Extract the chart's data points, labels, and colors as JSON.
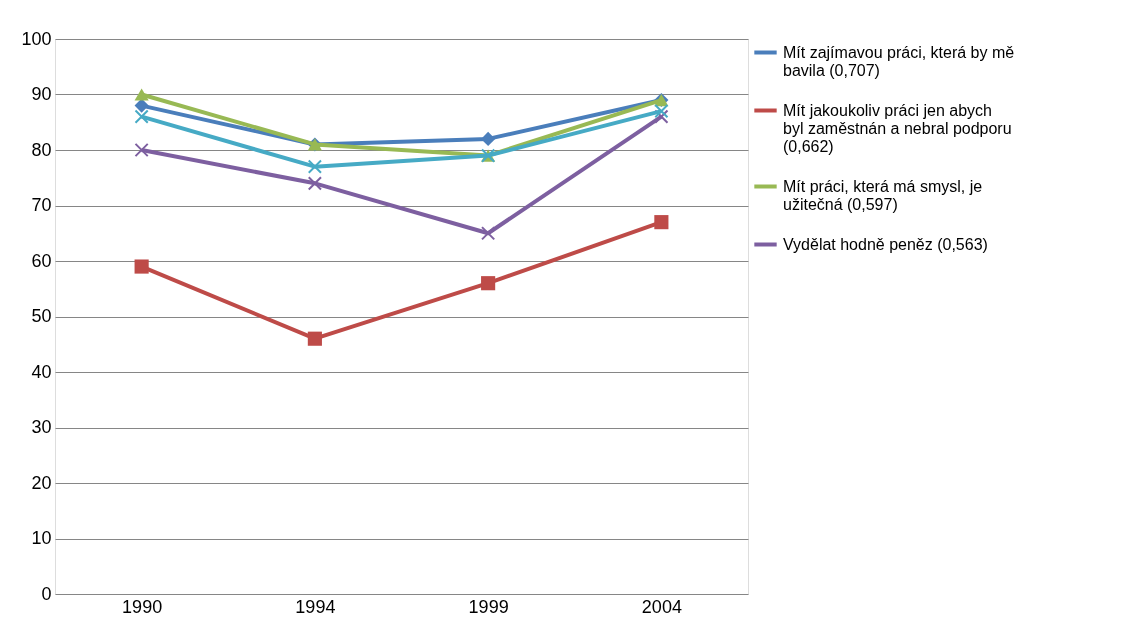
{
  "chart_data": {
    "type": "line",
    "categories": [
      "1990",
      "1994",
      "1999",
      "2004"
    ],
    "series": [
      {
        "name": "Mít zajímavou práci, která by mě bavila (0,707)",
        "color": "#4a7ebb",
        "values": [
          88,
          81,
          82,
          89
        ],
        "marker": "diamond"
      },
      {
        "name": "Mít jakoukoliv práci jen abych byl zaměstnán a nebral podporu (0,662)",
        "color": "#be4b48",
        "values": [
          59,
          46,
          56,
          67
        ],
        "marker": "square"
      },
      {
        "name": "Mít práci, která má smysl, je užitečná (0,597)",
        "color": "#98b954",
        "values": [
          90,
          81,
          79,
          89
        ],
        "marker": "triangle"
      },
      {
        "name": "Vydělat hodně peněz (0,563)",
        "color": "#7d5fa0",
        "values": [
          80,
          74,
          65,
          86
        ],
        "marker": "cross"
      },
      {
        "color": "#46aac5",
        "values": [
          86,
          77,
          79,
          87
        ],
        "marker": "cross"
      }
    ],
    "ylim": [
      0,
      100
    ],
    "yticks": [
      0,
      10,
      20,
      30,
      40,
      50,
      60,
      70,
      80,
      90,
      100
    ],
    "grid": "y",
    "legend": "right"
  }
}
